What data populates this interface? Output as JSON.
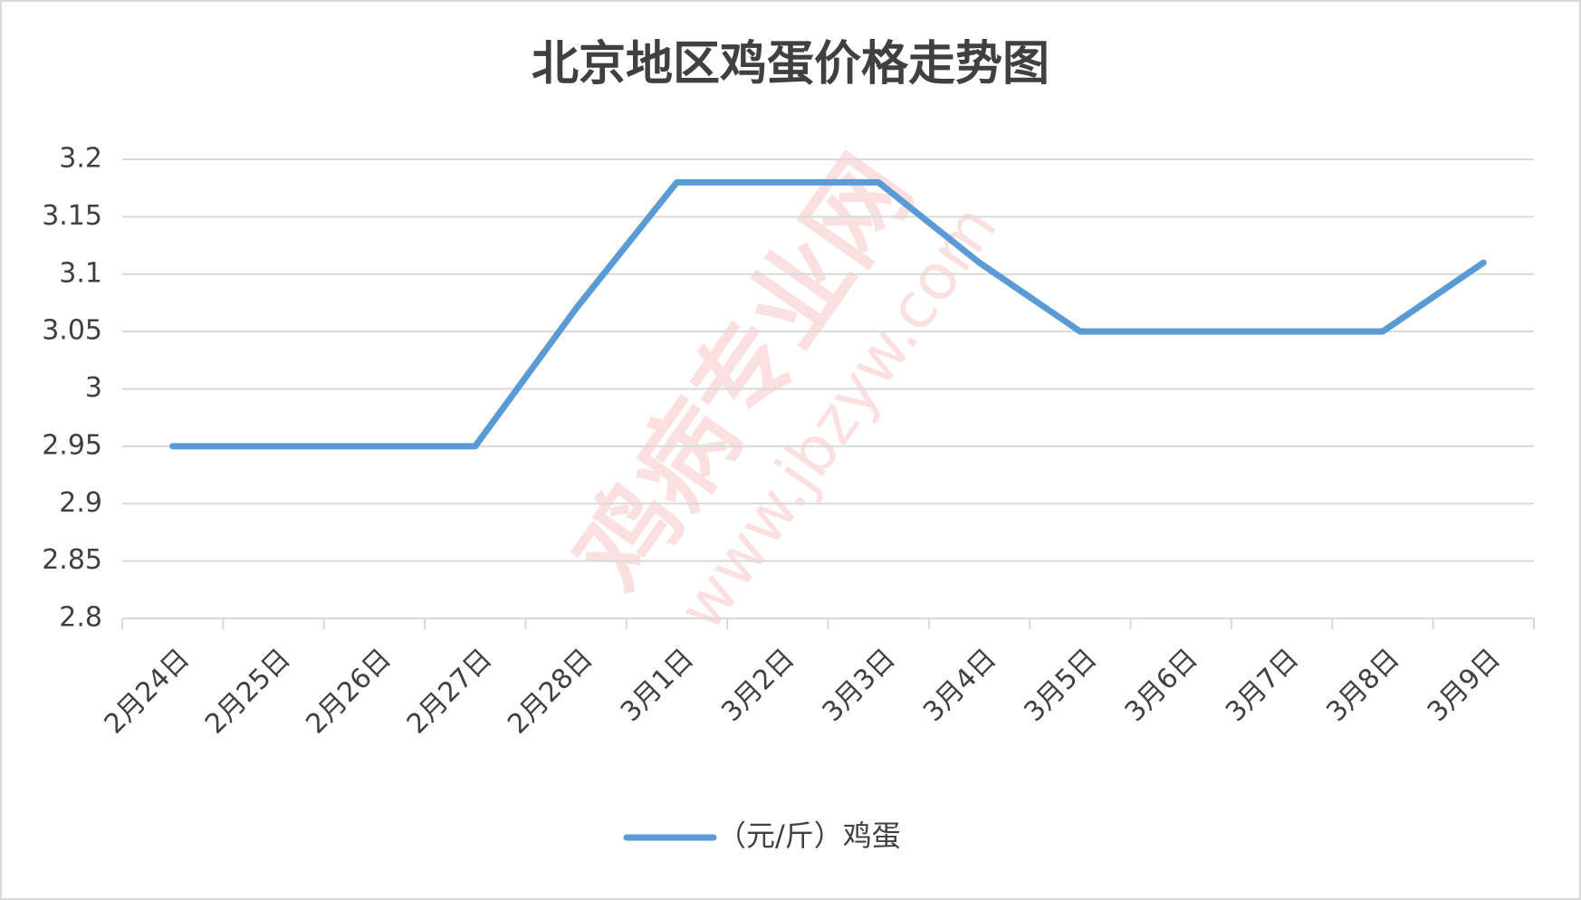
{
  "chart_data": {
    "type": "line",
    "title": "北京地区鸡蛋价格走势图",
    "categories": [
      "2月24日",
      "2月25日",
      "2月26日",
      "2月27日",
      "2月28日",
      "3月1日",
      "3月2日",
      "3月3日",
      "3月4日",
      "3月5日",
      "3月6日",
      "3月7日",
      "3月8日",
      "3月9日"
    ],
    "series": [
      {
        "name": "（元/斤）鸡蛋",
        "color": "#5b9bd5",
        "values": [
          2.95,
          2.95,
          2.95,
          2.95,
          3.07,
          3.18,
          3.18,
          3.18,
          3.11,
          3.05,
          3.05,
          3.05,
          3.05,
          3.11
        ]
      }
    ],
    "ylim": [
      2.8,
      3.2
    ],
    "yticks": [
      2.8,
      2.85,
      2.9,
      2.95,
      3,
      3.05,
      3.1,
      3.15,
      3.2
    ],
    "grid": true,
    "legend": "bottom",
    "watermark": [
      "鸡病专业网",
      "www.jbzyw.com"
    ]
  }
}
